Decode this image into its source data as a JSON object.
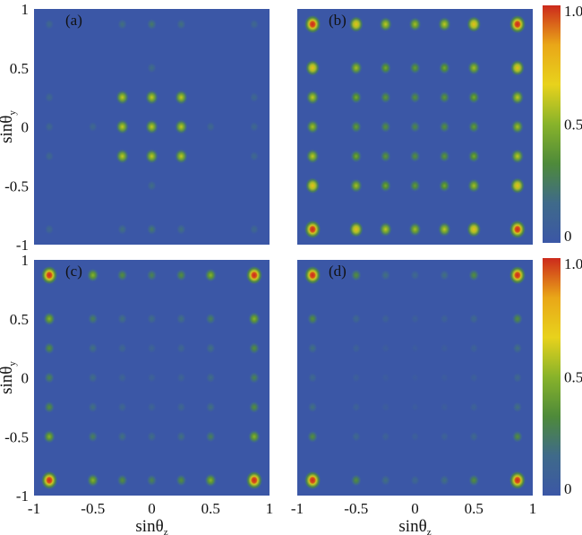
{
  "chart_data": [
    {
      "type": "heatmap",
      "panel_label": "(a)",
      "xlim": [
        -1,
        1
      ],
      "ylim": [
        -1,
        1
      ],
      "x_ticks": [],
      "y_ticks": [
        "1",
        "0.5",
        "0",
        "-0.5",
        "-1"
      ],
      "xlabel": "",
      "ylabel": "sinθy",
      "spots": [
        {
          "x": -0.87,
          "y": 0.87,
          "v": 0.15
        },
        {
          "x": -0.25,
          "y": 0.87,
          "v": 0.2
        },
        {
          "x": 0,
          "y": 0.87,
          "v": 0.25
        },
        {
          "x": 0.25,
          "y": 0.87,
          "v": 0.2
        },
        {
          "x": 0.87,
          "y": 0.87,
          "v": 0.15
        },
        {
          "x": 0,
          "y": 0.5,
          "v": 0.18
        },
        {
          "x": -0.87,
          "y": 0.25,
          "v": 0.15
        },
        {
          "x": -0.25,
          "y": 0.25,
          "v": 0.6
        },
        {
          "x": 0,
          "y": 0.25,
          "v": 0.6
        },
        {
          "x": 0.25,
          "y": 0.25,
          "v": 0.6
        },
        {
          "x": 0.87,
          "y": 0.25,
          "v": 0.15
        },
        {
          "x": -0.87,
          "y": 0,
          "v": 0.15
        },
        {
          "x": -0.5,
          "y": 0,
          "v": 0.15
        },
        {
          "x": -0.25,
          "y": 0,
          "v": 0.6
        },
        {
          "x": 0,
          "y": 0,
          "v": 0.6
        },
        {
          "x": 0.25,
          "y": 0,
          "v": 0.6
        },
        {
          "x": 0.5,
          "y": 0,
          "v": 0.15
        },
        {
          "x": 0.87,
          "y": 0,
          "v": 0.15
        },
        {
          "x": -0.87,
          "y": -0.25,
          "v": 0.15
        },
        {
          "x": -0.25,
          "y": -0.25,
          "v": 0.6
        },
        {
          "x": 0,
          "y": -0.25,
          "v": 0.6
        },
        {
          "x": 0.25,
          "y": -0.25,
          "v": 0.6
        },
        {
          "x": 0.87,
          "y": -0.25,
          "v": 0.15
        },
        {
          "x": 0,
          "y": -0.5,
          "v": 0.18
        },
        {
          "x": -0.87,
          "y": -0.87,
          "v": 0.15
        },
        {
          "x": -0.25,
          "y": -0.87,
          "v": 0.2
        },
        {
          "x": 0,
          "y": -0.87,
          "v": 0.25
        },
        {
          "x": 0.25,
          "y": -0.87,
          "v": 0.2
        },
        {
          "x": 0.87,
          "y": -0.87,
          "v": 0.15
        }
      ]
    },
    {
      "type": "heatmap",
      "panel_label": "(b)",
      "xlim": [
        -1,
        1
      ],
      "ylim": [
        -1,
        1
      ],
      "x_ticks": [],
      "y_ticks": [],
      "xlabel": "",
      "ylabel": "",
      "grid_x": [
        -0.87,
        -0.5,
        -0.25,
        0,
        0.25,
        0.5,
        0.87
      ],
      "grid_y": [
        0.87,
        0.5,
        0.25,
        0,
        -0.25,
        -0.5,
        -0.87
      ],
      "grid_v": [
        [
          1.0,
          0.75,
          0.6,
          0.55,
          0.6,
          0.75,
          1.0
        ],
        [
          0.75,
          0.55,
          0.45,
          0.4,
          0.45,
          0.55,
          0.75
        ],
        [
          0.6,
          0.45,
          0.38,
          0.35,
          0.38,
          0.45,
          0.6
        ],
        [
          0.55,
          0.4,
          0.35,
          0.32,
          0.35,
          0.4,
          0.55
        ],
        [
          0.6,
          0.45,
          0.38,
          0.35,
          0.38,
          0.45,
          0.6
        ],
        [
          0.75,
          0.55,
          0.45,
          0.4,
          0.45,
          0.55,
          0.75
        ],
        [
          1.0,
          0.75,
          0.6,
          0.55,
          0.6,
          0.75,
          1.0
        ]
      ]
    },
    {
      "type": "heatmap",
      "panel_label": "(c)",
      "xlim": [
        -1,
        1
      ],
      "ylim": [
        -1,
        1
      ],
      "x_ticks": [
        "-1",
        "-0.5",
        "0",
        "0.5",
        "1"
      ],
      "y_ticks": [
        "1",
        "0.5",
        "0",
        "-0.5",
        "-1"
      ],
      "xlabel": "sinθz",
      "ylabel": "sinθy",
      "grid_x": [
        -0.87,
        -0.5,
        -0.25,
        0,
        0.25,
        0.5,
        0.87
      ],
      "grid_y": [
        0.87,
        0.5,
        0.25,
        0,
        -0.25,
        -0.5,
        -0.87
      ],
      "grid_v": [
        [
          1.0,
          0.5,
          0.35,
          0.3,
          0.35,
          0.5,
          1.0
        ],
        [
          0.5,
          0.28,
          0.2,
          0.18,
          0.2,
          0.28,
          0.5
        ],
        [
          0.35,
          0.2,
          0.14,
          0.12,
          0.14,
          0.2,
          0.35
        ],
        [
          0.3,
          0.18,
          0.12,
          0.1,
          0.12,
          0.18,
          0.3
        ],
        [
          0.35,
          0.2,
          0.14,
          0.12,
          0.14,
          0.2,
          0.35
        ],
        [
          0.5,
          0.28,
          0.2,
          0.18,
          0.2,
          0.28,
          0.5
        ],
        [
          1.0,
          0.5,
          0.35,
          0.3,
          0.35,
          0.5,
          1.0
        ]
      ]
    },
    {
      "type": "heatmap",
      "panel_label": "(d)",
      "xlim": [
        -1,
        1
      ],
      "ylim": [
        -1,
        1
      ],
      "x_ticks": [
        "-1",
        "-0.5",
        "0",
        "0.5",
        "1"
      ],
      "y_ticks": [],
      "xlabel": "sinθz",
      "ylabel": "",
      "grid_x": [
        -0.87,
        -0.5,
        -0.25,
        0,
        0.25,
        0.5,
        0.87
      ],
      "grid_y": [
        0.87,
        0.5,
        0.25,
        0,
        -0.25,
        -0.5,
        -0.87
      ],
      "grid_v": [
        [
          1.0,
          0.35,
          0.2,
          0.15,
          0.2,
          0.35,
          1.0
        ],
        [
          0.35,
          0.15,
          0.1,
          0.08,
          0.1,
          0.15,
          0.35
        ],
        [
          0.2,
          0.1,
          0.06,
          0.05,
          0.06,
          0.1,
          0.2
        ],
        [
          0.15,
          0.08,
          0.05,
          0.04,
          0.05,
          0.08,
          0.15
        ],
        [
          0.2,
          0.1,
          0.06,
          0.05,
          0.06,
          0.1,
          0.2
        ],
        [
          0.35,
          0.15,
          0.1,
          0.08,
          0.1,
          0.15,
          0.35
        ],
        [
          1.0,
          0.35,
          0.2,
          0.15,
          0.2,
          0.35,
          1.0
        ]
      ]
    }
  ],
  "colorbar": {
    "ticks": [
      "1.0",
      "0.5",
      "0"
    ],
    "tick_values": [
      1.0,
      0.5,
      0
    ],
    "colors": [
      "#3b57a6",
      "#3f6a8a",
      "#4e8a3a",
      "#88b32a",
      "#e8d21c",
      "#e9a718",
      "#cc2a1c"
    ]
  },
  "background_color": "#3b57a6"
}
